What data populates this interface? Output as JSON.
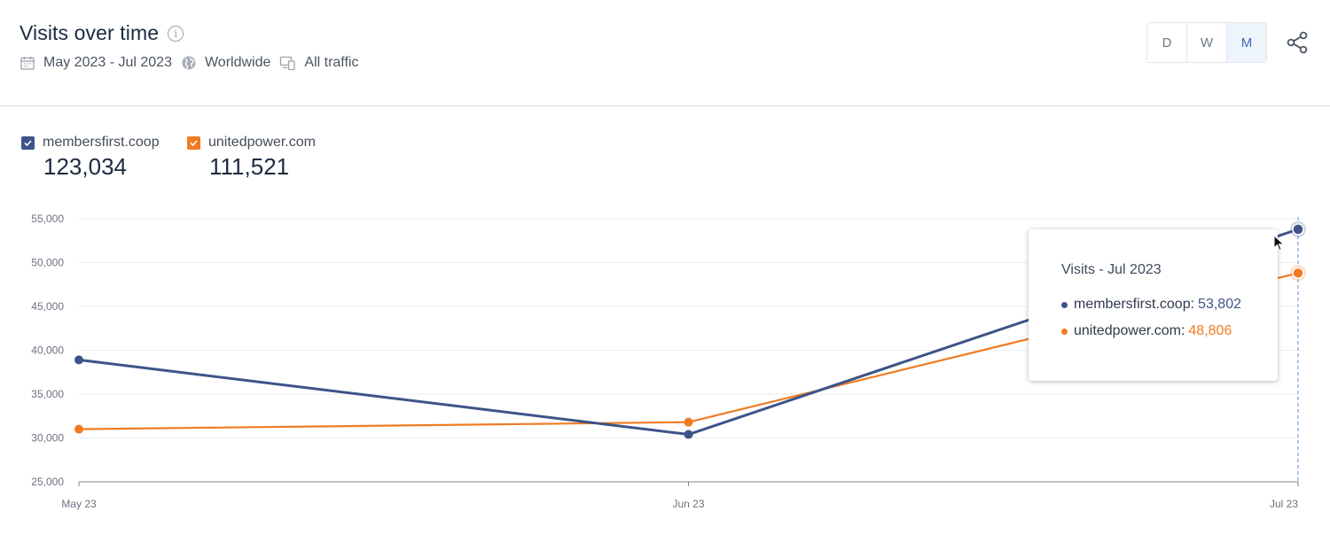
{
  "header": {
    "title": "Visits over time",
    "date_range": "May 2023 - Jul 2023",
    "region": "Worldwide",
    "traffic": "All traffic"
  },
  "granularity": {
    "options": [
      "D",
      "W",
      "M"
    ],
    "selected": "M"
  },
  "legend": [
    {
      "name": "membersfirst.coop",
      "total": "123,034",
      "color": "#3d5488",
      "checked": true
    },
    {
      "name": "unitedpower.com",
      "total": "111,521",
      "color": "#f07b22",
      "checked": true
    }
  ],
  "tooltip": {
    "title": "Visits - Jul 2023",
    "rows": [
      {
        "label": "membersfirst.coop:",
        "value": "53,802",
        "color": "#3d5488"
      },
      {
        "label": "unitedpower.com:",
        "value": "48,806",
        "color": "#f07b22"
      }
    ]
  },
  "chart_data": {
    "type": "line",
    "categories": [
      "May 23",
      "Jun 23",
      "Jul 23"
    ],
    "ylim": [
      25000,
      55000
    ],
    "yticks": [
      25000,
      30000,
      35000,
      40000,
      45000,
      50000,
      55000
    ],
    "ytick_labels": [
      "25,000",
      "30,000",
      "35,000",
      "40,000",
      "45,000",
      "50,000",
      "55,000"
    ],
    "grid": true,
    "series": [
      {
        "name": "membersfirst.coop",
        "values": [
          38900,
          30400,
          53802
        ],
        "color": "#3d5488"
      },
      {
        "name": "unitedpower.com",
        "values": [
          31000,
          31800,
          48806
        ],
        "color": "#f07b22"
      }
    ],
    "highlight_category": "Jul 23"
  }
}
